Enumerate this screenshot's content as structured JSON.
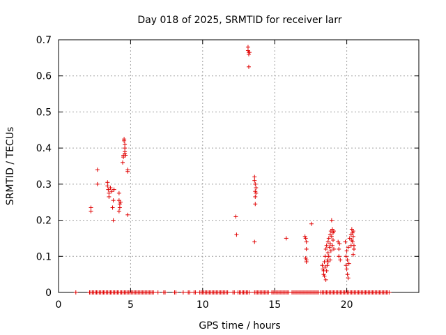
{
  "chart_data": {
    "type": "scatter",
    "title": "Day 018 of 2025, SRMTID for receiver larr",
    "xlabel": "GPS time / hours",
    "ylabel": "SRMTID / TECUs",
    "xlim": [
      0,
      25
    ],
    "ylim": [
      0,
      0.7
    ],
    "xticks": [
      "0",
      "5",
      "10",
      "15",
      "20"
    ],
    "yticks": [
      "0",
      "0.1",
      "0.2",
      "0.3",
      "0.4",
      "0.5",
      "0.6",
      "0.7"
    ],
    "grid": true,
    "marker": "+",
    "marker_color": "#e00000",
    "series": [
      {
        "name": "SRMTID",
        "points": [
          [
            2.25,
            0.235
          ],
          [
            2.25,
            0.225
          ],
          [
            2.7,
            0.34
          ],
          [
            2.7,
            0.3
          ],
          [
            3.4,
            0.305
          ],
          [
            3.4,
            0.295
          ],
          [
            3.45,
            0.285
          ],
          [
            3.5,
            0.275
          ],
          [
            3.5,
            0.265
          ],
          [
            3.6,
            0.29
          ],
          [
            3.7,
            0.28
          ],
          [
            3.75,
            0.235
          ],
          [
            3.8,
            0.255
          ],
          [
            3.8,
            0.2
          ],
          [
            3.85,
            0.285
          ],
          [
            4.2,
            0.275
          ],
          [
            4.2,
            0.255
          ],
          [
            4.25,
            0.245
          ],
          [
            4.25,
            0.235
          ],
          [
            4.3,
            0.25
          ],
          [
            4.2,
            0.225
          ],
          [
            4.45,
            0.36
          ],
          [
            4.5,
            0.38
          ],
          [
            4.5,
            0.375
          ],
          [
            4.55,
            0.425
          ],
          [
            4.55,
            0.42
          ],
          [
            4.6,
            0.41
          ],
          [
            4.6,
            0.4
          ],
          [
            4.6,
            0.39
          ],
          [
            4.6,
            0.385
          ],
          [
            4.65,
            0.38
          ],
          [
            4.8,
            0.34
          ],
          [
            4.8,
            0.335
          ],
          [
            4.8,
            0.215
          ],
          [
            12.3,
            0.21
          ],
          [
            12.35,
            0.16
          ],
          [
            13.15,
            0.68
          ],
          [
            13.15,
            0.67
          ],
          [
            13.2,
            0.665
          ],
          [
            13.2,
            0.66
          ],
          [
            13.25,
            0.665
          ],
          [
            13.2,
            0.625
          ],
          [
            13.6,
            0.32
          ],
          [
            13.6,
            0.31
          ],
          [
            13.65,
            0.3
          ],
          [
            13.65,
            0.28
          ],
          [
            13.65,
            0.265
          ],
          [
            13.7,
            0.29
          ],
          [
            13.7,
            0.275
          ],
          [
            13.65,
            0.245
          ],
          [
            13.6,
            0.14
          ],
          [
            15.8,
            0.15
          ],
          [
            17.1,
            0.155
          ],
          [
            17.15,
            0.15
          ],
          [
            17.2,
            0.14
          ],
          [
            17.2,
            0.12
          ],
          [
            17.15,
            0.095
          ],
          [
            17.2,
            0.09
          ],
          [
            17.2,
            0.085
          ],
          [
            17.55,
            0.19
          ],
          [
            18.3,
            0.075
          ],
          [
            18.35,
            0.065
          ],
          [
            18.4,
            0.06
          ],
          [
            18.4,
            0.05
          ],
          [
            18.45,
            0.085
          ],
          [
            18.45,
            0.045
          ],
          [
            18.5,
            0.07
          ],
          [
            18.5,
            0.1
          ],
          [
            18.55,
            0.035
          ],
          [
            18.55,
            0.12
          ],
          [
            18.6,
            0.13
          ],
          [
            18.6,
            0.06
          ],
          [
            18.65,
            0.09
          ],
          [
            18.7,
            0.14
          ],
          [
            18.7,
            0.11
          ],
          [
            18.75,
            0.15
          ],
          [
            18.75,
            0.1
          ],
          [
            18.8,
            0.125
          ],
          [
            18.85,
            0.16
          ],
          [
            18.85,
            0.135
          ],
          [
            18.9,
            0.17
          ],
          [
            18.9,
            0.115
          ],
          [
            18.95,
            0.2
          ],
          [
            18.95,
            0.155
          ],
          [
            19.0,
            0.175
          ],
          [
            19.0,
            0.13
          ],
          [
            19.05,
            0.165
          ],
          [
            19.05,
            0.145
          ],
          [
            19.1,
            0.17
          ],
          [
            19.1,
            0.12
          ],
          [
            18.85,
            0.09
          ],
          [
            18.7,
            0.085
          ],
          [
            18.65,
            0.075
          ],
          [
            19.4,
            0.14
          ],
          [
            19.45,
            0.12
          ],
          [
            19.45,
            0.1
          ],
          [
            19.5,
            0.135
          ],
          [
            19.55,
            0.09
          ],
          [
            19.9,
            0.14
          ],
          [
            19.95,
            0.1
          ],
          [
            19.95,
            0.075
          ],
          [
            20.0,
            0.115
          ],
          [
            20.0,
            0.065
          ],
          [
            20.05,
            0.05
          ],
          [
            20.05,
            0.09
          ],
          [
            20.1,
            0.125
          ],
          [
            20.1,
            0.04
          ],
          [
            20.15,
            0.08
          ],
          [
            20.2,
            0.15
          ],
          [
            20.3,
            0.16
          ],
          [
            20.3,
            0.13
          ],
          [
            20.35,
            0.175
          ],
          [
            20.35,
            0.145
          ],
          [
            20.4,
            0.165
          ],
          [
            20.4,
            0.14
          ],
          [
            20.45,
            0.17
          ],
          [
            20.45,
            0.155
          ],
          [
            20.5,
            0.13
          ],
          [
            20.5,
            0.12
          ],
          [
            20.45,
            0.105
          ]
        ],
        "zero_band": {
          "y": 0,
          "segments": [
            [
              1.2,
              1.2
            ],
            [
              2.15,
              4.7
            ],
            [
              4.75,
              6.6
            ],
            [
              6.9,
              6.9
            ],
            [
              7.3,
              7.4
            ],
            [
              8.05,
              8.15
            ],
            [
              8.65,
              8.7
            ],
            [
              9.0,
              9.15
            ],
            [
              9.4,
              9.5
            ],
            [
              9.8,
              11.8
            ],
            [
              12.1,
              12.2
            ],
            [
              12.45,
              13.3
            ],
            [
              13.6,
              14.6
            ],
            [
              14.8,
              16.0
            ],
            [
              16.2,
              18.1
            ],
            [
              18.2,
              22.95
            ]
          ]
        }
      }
    ]
  }
}
